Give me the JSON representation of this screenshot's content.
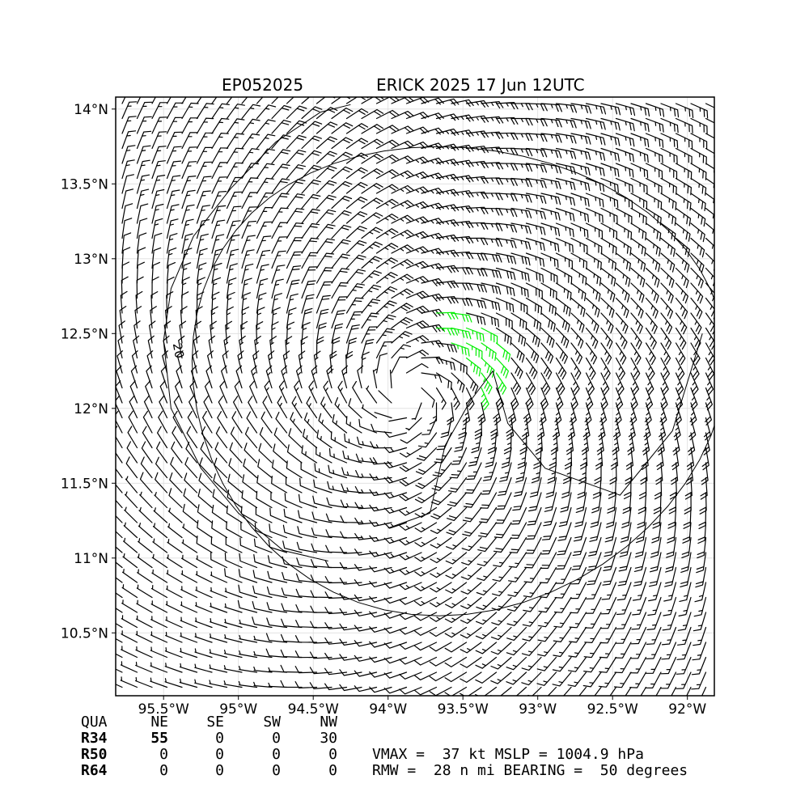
{
  "title_left": "EP052025",
  "title_right": "ERICK 2025 17 Jun 12UTC",
  "chart_data": {
    "type": "wind-barb map",
    "xlim": [
      -95.82,
      -91.82
    ],
    "ylim": [
      10.08,
      14.08
    ],
    "x_ticks": [
      -95.5,
      -95.0,
      -94.5,
      -94.0,
      -93.5,
      -93.0,
      -92.5,
      -92.0
    ],
    "x_tick_labels": [
      "95.5°W",
      "95°W",
      "94.5°W",
      "94°W",
      "93.5°W",
      "93°W",
      "92.5°W",
      "92°W"
    ],
    "y_ticks": [
      10.5,
      11.0,
      11.5,
      12.0,
      12.5,
      13.0,
      13.5,
      14.0
    ],
    "y_tick_labels": [
      "10.5°N",
      "11°N",
      "11.5°N",
      "12°N",
      "12.5°N",
      "13°N",
      "13.5°N",
      "14°N"
    ],
    "grid": true,
    "center": {
      "lon": -93.85,
      "lat": 12.1
    },
    "rmw_nmi": 28,
    "vmax_kt": 37,
    "wind_colors": {
      "below_34kt": "#000000",
      "34_to_50kt": "#00ee00",
      "50_to_64kt": "#ffa500"
    },
    "contour_label": "20",
    "contour_level": 20
  },
  "table": {
    "headers": [
      "QUA",
      "NE",
      "SE",
      "SW",
      "NW"
    ],
    "rows": [
      {
        "label": "R34",
        "values": [
          "55",
          "0",
          "0",
          "30"
        ]
      },
      {
        "label": "R50",
        "values": [
          "0",
          "0",
          "0",
          "0"
        ]
      },
      {
        "label": "R64",
        "values": [
          "0",
          "0",
          "0",
          "0"
        ]
      }
    ]
  },
  "stats": {
    "line1": "VMAX =  37 kt MSLP = 1004.9 hPa",
    "line2": "RMW =  28 n mi BEARING =  50 degrees"
  }
}
